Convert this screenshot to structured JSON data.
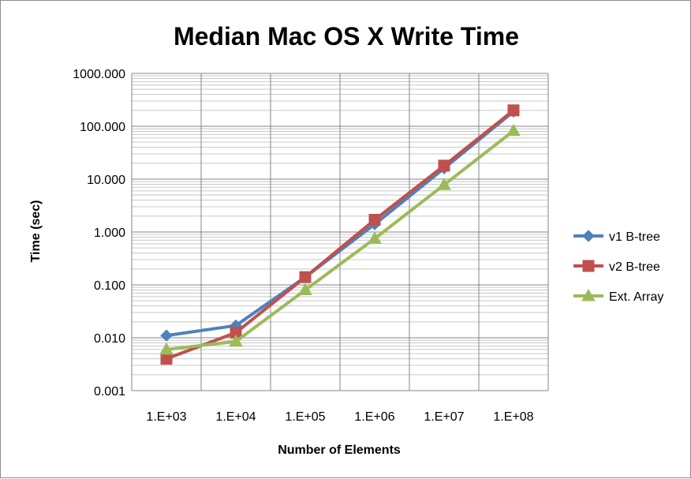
{
  "chart_data": {
    "type": "line",
    "title": "Median Mac OS X Write Time",
    "xlabel": "Number of Elements",
    "ylabel": "Time (sec)",
    "x_scale": "log",
    "y_scale": "log",
    "categories": [
      "1.E+03",
      "1.E+04",
      "1.E+05",
      "1.E+06",
      "1.E+07",
      "1.E+08"
    ],
    "x": [
      1000,
      10000,
      100000,
      1000000,
      10000000,
      100000000
    ],
    "ylim": [
      0.001,
      1000
    ],
    "y_ticks": [
      0.001,
      0.01,
      0.1,
      1,
      10,
      100,
      1000
    ],
    "y_tick_labels": [
      "0.001",
      "0.010",
      "0.100",
      "1.000",
      "10.000",
      "100.000",
      "1000.000"
    ],
    "grid": true,
    "minor_grid": true,
    "legend_position": "right",
    "series": [
      {
        "name": "v1 B-tree",
        "color": "#4F81BD",
        "marker": "diamond",
        "values": [
          0.011,
          0.017,
          0.14,
          1.4,
          16,
          190
        ]
      },
      {
        "name": "v2 B-tree",
        "color": "#C0504D",
        "marker": "square",
        "values": [
          0.004,
          0.0125,
          0.14,
          1.7,
          18,
          200
        ]
      },
      {
        "name": "Ext. Array",
        "color": "#9BBB59",
        "marker": "triangle",
        "values": [
          0.006,
          0.0085,
          0.08,
          0.75,
          7.8,
          82
        ]
      }
    ]
  }
}
